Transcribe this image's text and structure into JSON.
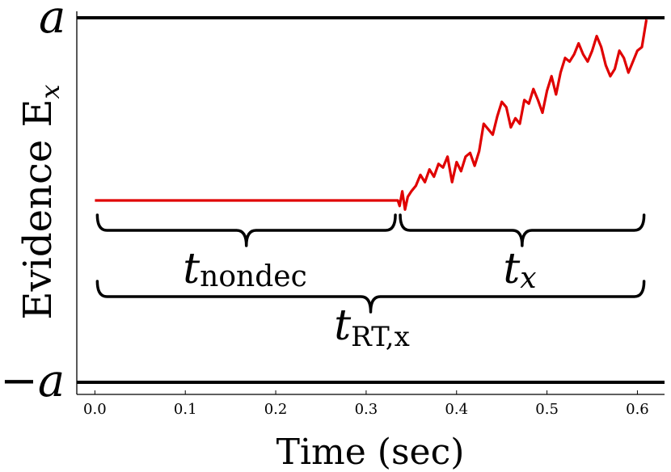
{
  "chart_data": {
    "type": "line",
    "xlabel": "Time (sec)",
    "ylabel": "Evidence E",
    "ylabel_sub": "x",
    "xlim": [
      -0.02,
      0.63
    ],
    "ylim": [
      -1,
      1
    ],
    "x_ticks": [
      "0.0",
      "0.1",
      "0.2",
      "0.3",
      "0.4",
      "0.5",
      "0.6"
    ],
    "x_tick_values": [
      0.0,
      0.1,
      0.2,
      0.3,
      0.4,
      0.5,
      0.6
    ],
    "upper_bound_label": "a",
    "lower_bound_label": "−a",
    "upper_bound": 1,
    "lower_bound": -1,
    "line_color": "#e00000",
    "bound_color": "#000000",
    "series": [
      {
        "x": [
          0.0,
          0.335,
          0.337,
          0.34,
          0.343,
          0.346,
          0.35,
          0.355,
          0.36,
          0.365,
          0.37,
          0.375,
          0.38,
          0.385,
          0.39,
          0.395,
          0.4,
          0.405,
          0.41,
          0.415,
          0.42,
          0.425,
          0.43,
          0.435,
          0.44,
          0.445,
          0.45,
          0.455,
          0.46,
          0.465,
          0.47,
          0.475,
          0.48,
          0.485,
          0.49,
          0.495,
          0.5,
          0.505,
          0.51,
          0.515,
          0.52,
          0.525,
          0.53,
          0.535,
          0.54,
          0.545,
          0.55,
          0.555,
          0.56,
          0.565,
          0.57,
          0.575,
          0.58,
          0.585,
          0.59,
          0.595,
          0.6,
          0.605,
          0.61
        ],
        "y": [
          0.0,
          0.0,
          -0.03,
          0.05,
          -0.05,
          0.02,
          0.05,
          0.08,
          0.14,
          0.1,
          0.17,
          0.13,
          0.2,
          0.18,
          0.24,
          0.1,
          0.21,
          0.16,
          0.24,
          0.26,
          0.19,
          0.27,
          0.42,
          0.39,
          0.36,
          0.46,
          0.54,
          0.51,
          0.4,
          0.45,
          0.42,
          0.55,
          0.53,
          0.61,
          0.55,
          0.48,
          0.6,
          0.68,
          0.58,
          0.7,
          0.78,
          0.76,
          0.8,
          0.86,
          0.8,
          0.76,
          0.82,
          0.9,
          0.84,
          0.74,
          0.68,
          0.72,
          0.82,
          0.78,
          0.7,
          0.76,
          0.82,
          0.84,
          0.99
        ]
      }
    ],
    "annotations": [
      {
        "label": "t",
        "sub": "nondec",
        "x_from": 0.0,
        "x_to": 0.335,
        "row": 1
      },
      {
        "label": "t",
        "sub": "x",
        "x_from": 0.335,
        "x_to": 0.61,
        "row": 1
      },
      {
        "label": "t",
        "sub": "RT,x",
        "x_from": 0.0,
        "x_to": 0.61,
        "row": 2
      }
    ]
  }
}
